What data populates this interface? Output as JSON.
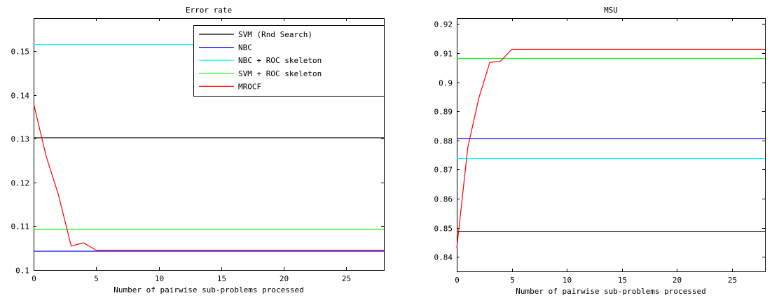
{
  "chart_data": [
    {
      "type": "line",
      "title": "Error rate",
      "xlabel": "Number of pairwise sub-problems processed",
      "ylabel": "",
      "xlim": [
        0,
        28
      ],
      "ylim": [
        0.1,
        0.1575
      ],
      "xticks": [
        0,
        5,
        10,
        15,
        20,
        25
      ],
      "yticks": [
        0.1,
        0.11,
        0.12,
        0.13,
        0.14,
        0.15
      ],
      "ytick_labels": [
        "0.1",
        "0.11",
        "0.12",
        "0.13",
        "0.14",
        "0.15"
      ],
      "legend": {
        "position": "top-right"
      },
      "grid": false,
      "series": [
        {
          "name": "SVM (Rnd Search)",
          "color": "#000000",
          "x": [
            0,
            28
          ],
          "y": [
            0.1302,
            0.1302
          ]
        },
        {
          "name": "NBC",
          "color": "#0000ff",
          "x": [
            0,
            28
          ],
          "y": [
            0.1043,
            0.1043
          ]
        },
        {
          "name": "NBC + ROC skeleton",
          "color": "#00ffff",
          "x": [
            0,
            28
          ],
          "y": [
            0.1515,
            0.1515
          ]
        },
        {
          "name": "SVM + ROC skeleton",
          "color": "#00ff00",
          "x": [
            0,
            28
          ],
          "y": [
            0.1093,
            0.1093
          ]
        },
        {
          "name": "MROCF",
          "color": "#ff0000",
          "x": [
            0,
            1,
            2,
            3,
            4,
            5,
            6,
            7,
            28
          ],
          "y": [
            0.138,
            0.126,
            0.117,
            0.1055,
            0.1062,
            0.1045,
            0.1045,
            0.1045,
            0.1045
          ]
        }
      ]
    },
    {
      "type": "line",
      "title": "MSU",
      "xlabel": "Number of pairwise sub-problems processed",
      "ylabel": "",
      "xlim": [
        0,
        28
      ],
      "ylim": [
        0.835,
        0.922
      ],
      "xticks": [
        0,
        5,
        10,
        15,
        20,
        25
      ],
      "yticks": [
        0.84,
        0.85,
        0.86,
        0.87,
        0.88,
        0.89,
        0.9,
        0.91,
        0.92
      ],
      "ytick_labels": [
        "0.84",
        "0.85",
        "0.86",
        "0.87",
        "0.88",
        "0.89",
        "0.9",
        "0.91",
        "0.92"
      ],
      "grid": false,
      "series": [
        {
          "color": "#000000",
          "x": [
            0,
            28
          ],
          "y": [
            0.8488,
            0.8488
          ]
        },
        {
          "color": "#0000ff",
          "x": [
            0,
            28
          ],
          "y": [
            0.8806,
            0.8806
          ]
        },
        {
          "color": "#00ffff",
          "x": [
            0,
            28
          ],
          "y": [
            0.8738,
            0.8738
          ]
        },
        {
          "color": "#00ff00",
          "x": [
            0,
            28
          ],
          "y": [
            0.9082,
            0.9082
          ]
        },
        {
          "color": "#ff0000",
          "x": [
            0,
            1,
            2,
            3,
            4,
            5,
            6,
            28
          ],
          "y": [
            0.843,
            0.8775,
            0.8945,
            0.9068,
            0.9073,
            0.9113,
            0.9113,
            0.9113
          ]
        }
      ]
    }
  ]
}
